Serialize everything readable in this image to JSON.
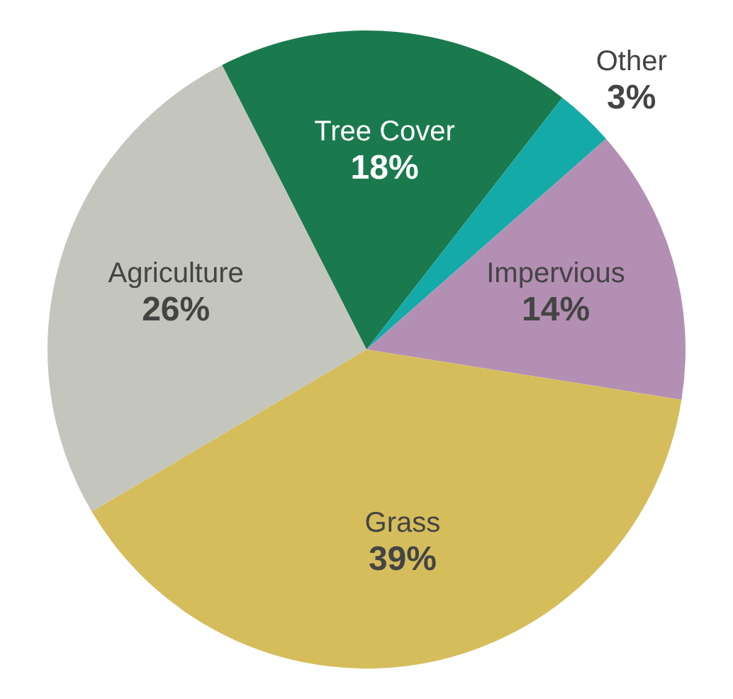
{
  "chart_data": {
    "type": "pie",
    "categories": [
      "Tree Cover",
      "Other",
      "Impervious",
      "Grass",
      "Agriculture"
    ],
    "values": [
      18,
      3,
      14,
      39,
      26
    ],
    "value_labels": [
      "18%",
      "3%",
      "14%",
      "39%",
      "26%"
    ],
    "colors": [
      "#1a7a4e",
      "#14aaa8",
      "#b48fb4",
      "#d5bd5c",
      "#c4c5bd"
    ]
  }
}
